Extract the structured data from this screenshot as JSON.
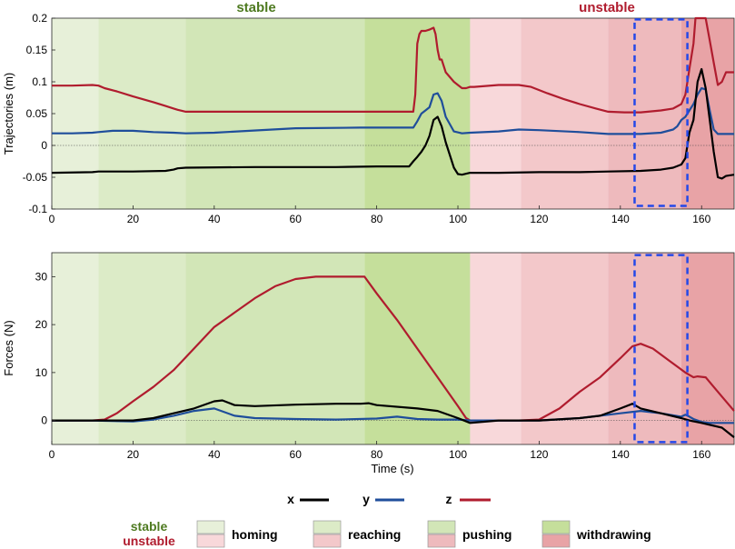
{
  "colors": {
    "stable_homing": "#e7f0d9",
    "stable_reaching": "#dcebc7",
    "stable_pushing": "#d2e6b7",
    "stable_withdrawing": "#c5df9b",
    "unstable_homing": "#f8d8da",
    "unstable_reaching": "#f3c8ca",
    "unstable_pushing": "#eebabd",
    "unstable_withdrawing": "#e8a3a6",
    "x": "#000000",
    "y": "#1f4e9b",
    "z": "#b01c2e",
    "box": "#2448e8",
    "stable_text": "#4e7a20",
    "unstable_text": "#b01c2e"
  },
  "labels": {
    "stable": "stable",
    "unstable": "unstable"
  },
  "legend": {
    "lines": [
      {
        "key": "x",
        "label": "x"
      },
      {
        "key": "y",
        "label": "y"
      },
      {
        "key": "z",
        "label": "z"
      }
    ],
    "stable_label": "stable",
    "unstable_label": "unstable",
    "phases": [
      "homing",
      "reaching",
      "pushing",
      "withdrawing"
    ]
  },
  "chart_data": [
    {
      "type": "line",
      "ylabel": "Trajectories (m)",
      "xlabel": "",
      "xlim": [
        0,
        168
      ],
      "ylim": [
        -0.1,
        0.2
      ],
      "xticks": [
        0,
        20,
        40,
        60,
        80,
        100,
        120,
        140,
        160
      ],
      "yticks": [
        -0.1,
        -0.05,
        0,
        0.05,
        0.1,
        0.15,
        0.2
      ],
      "ytick_labels": [
        "-0.1",
        "-0.05",
        "0",
        "0.05",
        "0.1",
        "0.15",
        "0.2"
      ],
      "phases": [
        {
          "condition": "stable",
          "phase": "homing",
          "start": 0,
          "end": 11.5
        },
        {
          "condition": "stable",
          "phase": "reaching",
          "start": 11.5,
          "end": 33
        },
        {
          "condition": "stable",
          "phase": "pushing",
          "start": 33,
          "end": 77
        },
        {
          "condition": "stable",
          "phase": "withdrawing",
          "start": 77,
          "end": 103
        },
        {
          "condition": "unstable",
          "phase": "homing",
          "start": 103,
          "end": 115.5
        },
        {
          "condition": "unstable",
          "phase": "reaching",
          "start": 115.5,
          "end": 137
        },
        {
          "condition": "unstable",
          "phase": "pushing",
          "start": 137,
          "end": 155
        },
        {
          "condition": "unstable",
          "phase": "withdrawing",
          "start": 155,
          "end": 168
        }
      ],
      "highlight_box": {
        "x": [
          143.5,
          156.5
        ],
        "y": [
          -0.095,
          0.198
        ]
      },
      "series": [
        {
          "name": "z",
          "x": [
            0,
            5,
            10,
            11.5,
            13,
            16,
            20,
            25,
            28,
            30,
            31,
            33,
            40,
            50,
            60,
            70,
            80,
            89,
            89.5,
            90,
            90.5,
            91,
            92,
            93,
            94,
            94.5,
            95,
            95.5,
            96,
            97,
            99,
            100,
            101,
            102,
            103,
            104,
            110,
            115,
            118,
            122,
            126,
            130,
            134,
            137,
            141,
            145,
            150,
            153,
            155,
            156,
            157,
            158,
            158.5,
            159,
            160,
            161,
            162,
            163,
            164,
            165,
            166,
            168
          ],
          "y": [
            0.094,
            0.094,
            0.095,
            0.094,
            0.09,
            0.085,
            0.077,
            0.068,
            0.062,
            0.058,
            0.056,
            0.053,
            0.053,
            0.053,
            0.053,
            0.053,
            0.053,
            0.053,
            0.08,
            0.16,
            0.175,
            0.18,
            0.18,
            0.182,
            0.185,
            0.175,
            0.15,
            0.135,
            0.135,
            0.115,
            0.1,
            0.095,
            0.09,
            0.09,
            0.092,
            0.092,
            0.095,
            0.095,
            0.092,
            0.082,
            0.073,
            0.065,
            0.058,
            0.053,
            0.052,
            0.052,
            0.055,
            0.058,
            0.065,
            0.08,
            0.12,
            0.16,
            0.2,
            0.2,
            0.2,
            0.2,
            0.165,
            0.13,
            0.095,
            0.1,
            0.115,
            0.115
          ]
        },
        {
          "name": "y",
          "x": [
            0,
            5,
            10,
            11.5,
            15,
            20,
            25,
            30,
            33,
            40,
            60,
            76,
            80,
            89,
            90,
            91,
            92,
            93,
            94,
            95,
            96,
            97,
            99,
            101,
            103,
            110,
            115,
            120,
            130,
            137,
            145,
            150,
            153,
            154,
            155,
            156,
            157,
            158,
            159,
            160,
            161,
            162,
            163,
            164,
            166,
            168
          ],
          "y": [
            0.019,
            0.019,
            0.02,
            0.021,
            0.023,
            0.023,
            0.021,
            0.02,
            0.019,
            0.02,
            0.027,
            0.028,
            0.028,
            0.028,
            0.038,
            0.05,
            0.055,
            0.06,
            0.08,
            0.082,
            0.07,
            0.045,
            0.022,
            0.019,
            0.02,
            0.022,
            0.025,
            0.024,
            0.021,
            0.018,
            0.018,
            0.02,
            0.025,
            0.03,
            0.04,
            0.045,
            0.055,
            0.065,
            0.08,
            0.09,
            0.088,
            0.055,
            0.025,
            0.018,
            0.018,
            0.018
          ]
        },
        {
          "name": "x",
          "x": [
            0,
            10,
            11.5,
            20,
            28,
            30,
            31,
            33,
            50,
            60,
            70,
            80,
            88,
            89,
            90,
            91,
            92,
            93,
            94,
            95,
            96,
            97,
            98,
            99,
            100,
            101,
            103,
            110,
            120,
            130,
            137,
            145,
            150,
            153,
            155,
            156,
            157,
            158,
            159,
            160,
            161,
            162,
            163,
            164,
            165,
            166,
            168
          ],
          "y": [
            -0.043,
            -0.042,
            -0.041,
            -0.041,
            -0.04,
            -0.038,
            -0.036,
            -0.035,
            -0.034,
            -0.034,
            -0.034,
            -0.033,
            -0.033,
            -0.025,
            -0.018,
            -0.01,
            0.0,
            0.015,
            0.04,
            0.045,
            0.03,
            0.005,
            -0.015,
            -0.035,
            -0.045,
            -0.046,
            -0.043,
            -0.043,
            -0.042,
            -0.042,
            -0.041,
            -0.04,
            -0.038,
            -0.035,
            -0.03,
            -0.02,
            0.02,
            0.04,
            0.1,
            0.12,
            0.09,
            0.04,
            -0.01,
            -0.05,
            -0.052,
            -0.048,
            -0.046
          ]
        }
      ]
    },
    {
      "type": "line",
      "ylabel": "Forces (N)",
      "xlabel": "Time (s)",
      "xlim": [
        0,
        168
      ],
      "ylim": [
        -5,
        35
      ],
      "xticks": [
        0,
        20,
        40,
        60,
        80,
        100,
        120,
        140,
        160
      ],
      "yticks": [
        0,
        10,
        20,
        30
      ],
      "ytick_labels": [
        "0",
        "10",
        "20",
        "30"
      ],
      "phases": [
        {
          "condition": "stable",
          "phase": "homing",
          "start": 0,
          "end": 11.5
        },
        {
          "condition": "stable",
          "phase": "reaching",
          "start": 11.5,
          "end": 33
        },
        {
          "condition": "stable",
          "phase": "pushing",
          "start": 33,
          "end": 77
        },
        {
          "condition": "stable",
          "phase": "withdrawing",
          "start": 77,
          "end": 103
        },
        {
          "condition": "unstable",
          "phase": "homing",
          "start": 103,
          "end": 115.5
        },
        {
          "condition": "unstable",
          "phase": "reaching",
          "start": 115.5,
          "end": 137
        },
        {
          "condition": "unstable",
          "phase": "pushing",
          "start": 137,
          "end": 155
        },
        {
          "condition": "unstable",
          "phase": "withdrawing",
          "start": 155,
          "end": 168
        }
      ],
      "highlight_box": {
        "x": [
          143.5,
          156.5
        ],
        "y": [
          -4.5,
          34.5
        ]
      },
      "series": [
        {
          "name": "z",
          "x": [
            0,
            10,
            13,
            16,
            20,
            25,
            30,
            35,
            40,
            45,
            50,
            55,
            60,
            65,
            70,
            76,
            77,
            80,
            85,
            90,
            95,
            100,
            102,
            103,
            110,
            115,
            120,
            125,
            130,
            135,
            140,
            143,
            145,
            148,
            152,
            156,
            158,
            159,
            161,
            163,
            165,
            168
          ],
          "y": [
            0,
            0,
            0.2,
            1.5,
            4,
            7,
            10.5,
            15,
            19.5,
            22.5,
            25.5,
            28,
            29.5,
            30,
            30,
            30,
            30,
            26.5,
            21,
            15,
            9,
            3,
            0.5,
            0,
            0,
            0,
            0.2,
            2.5,
            6,
            9,
            13,
            15.5,
            16,
            15,
            12.5,
            10,
            9,
            9.2,
            9,
            7,
            5,
            2
          ]
        },
        {
          "name": "y",
          "x": [
            0,
            10,
            20,
            25,
            30,
            35,
            40,
            45,
            50,
            60,
            70,
            80,
            85,
            90,
            95,
            100,
            103,
            110,
            120,
            130,
            140,
            145,
            150,
            155,
            156,
            157,
            158,
            160,
            162,
            165,
            168
          ],
          "y": [
            0,
            0,
            -0.2,
            0.2,
            1,
            2,
            2.5,
            1,
            0.5,
            0.3,
            0.2,
            0.4,
            0.8,
            0.3,
            0.2,
            0.2,
            0,
            0,
            0,
            0.5,
            1.5,
            2,
            1.5,
            0.8,
            1.2,
            0.8,
            0.3,
            -0.3,
            -0.5,
            -0.5,
            -0.5
          ]
        },
        {
          "name": "x",
          "x": [
            0,
            10,
            15,
            20,
            25,
            30,
            35,
            40,
            42,
            45,
            50,
            60,
            70,
            76,
            78,
            80,
            90,
            95,
            100,
            103,
            110,
            120,
            130,
            135,
            140,
            143,
            145,
            150,
            155,
            157,
            160,
            165,
            168
          ],
          "y": [
            0,
            0,
            0,
            0,
            0.5,
            1.5,
            2.5,
            4,
            4.2,
            3.2,
            3,
            3.3,
            3.5,
            3.5,
            3.6,
            3.2,
            2.5,
            2,
            0.5,
            -0.5,
            0,
            0,
            0.5,
            1,
            2.5,
            3.5,
            2.5,
            1.5,
            0.5,
            0,
            -0.5,
            -1.5,
            -3.5
          ]
        }
      ]
    }
  ]
}
